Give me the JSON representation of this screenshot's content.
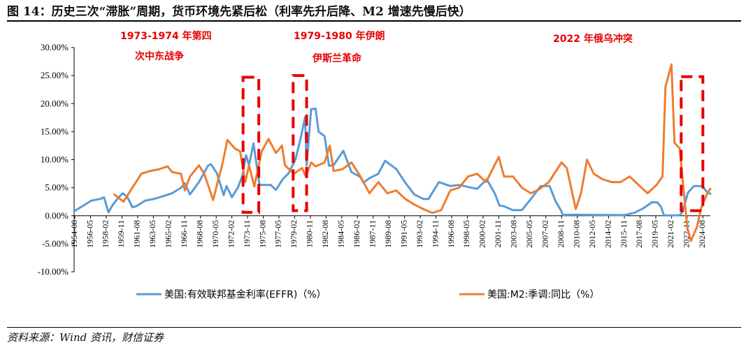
{
  "header": {
    "title": "图 14：历史三次“滞胀”周期，货币环境先紧后松（利率先升后降、M2 增速先慢后快）"
  },
  "footer": {
    "source": "资料来源：Wind 资讯，财信证券"
  },
  "annotations": [
    {
      "line1": "1973-1974 年第四",
      "line2": "次中东战争"
    },
    {
      "line1": "1979-1980 年伊朗",
      "line2": "伊斯兰革命"
    },
    {
      "line1": "2022 年俄乌冲突",
      "line2": ""
    }
  ],
  "colors": {
    "effr": "#5b9bd5",
    "m2": "#ed7d31",
    "highlight": "#e60000"
  },
  "chart_data": {
    "type": "line",
    "y_unit": "%",
    "ylim": [
      -10,
      30
    ],
    "ytick_labels": [
      "30.00%",
      "25.00%",
      "20.00%",
      "15.00%",
      "10.00%",
      "5.00%",
      "0.00%",
      "-5.00%",
      "-10.00%"
    ],
    "ytick_values": [
      30,
      25,
      20,
      15,
      10,
      5,
      0,
      -5,
      -10
    ],
    "xlim": [
      "1954-07",
      "2025-06"
    ],
    "xtick_labels": [
      "1954-08",
      "1956-05",
      "1958-02",
      "1959-11",
      "1961-08",
      "1963-05",
      "1965-02",
      "1966-11",
      "1968-08",
      "1970-05",
      "1972-02",
      "1973-11",
      "1975-08",
      "1977-05",
      "1979-02",
      "1980-11",
      "1982-08",
      "1984-05",
      "1986-02",
      "1987-11",
      "1989-08",
      "1991-05",
      "1993-02",
      "1994-11",
      "1996-08",
      "1998-05",
      "2000-02",
      "2001-11",
      "2003-08",
      "2005-05",
      "2007-02",
      "2008-11",
      "2010-08",
      "2012-05",
      "2014-02",
      "2015-11",
      "2017-08",
      "2019-05",
      "2021-02",
      "2022-11",
      "2024-08"
    ],
    "grid": false,
    "legend_position": "bottom",
    "series": [
      {
        "name": "美国:有效联邦基金利率(EFFR)（%）",
        "points": [
          [
            "1954-07",
            0.8
          ],
          [
            "1955-06",
            1.7
          ],
          [
            "1956-06",
            2.7
          ],
          [
            "1957-06",
            3.0
          ],
          [
            "1957-11",
            3.3
          ],
          [
            "1958-05",
            0.6
          ],
          [
            "1958-10",
            1.8
          ],
          [
            "1959-06",
            3.2
          ],
          [
            "1959-12",
            4.0
          ],
          [
            "1960-06",
            3.4
          ],
          [
            "1961-01",
            1.5
          ],
          [
            "1961-06",
            1.7
          ],
          [
            "1962-06",
            2.7
          ],
          [
            "1963-06",
            3.0
          ],
          [
            "1964-06",
            3.5
          ],
          [
            "1965-06",
            4.0
          ],
          [
            "1966-06",
            5.0
          ],
          [
            "1966-11",
            5.8
          ],
          [
            "1967-06",
            3.8
          ],
          [
            "1968-06",
            6.0
          ],
          [
            "1969-06",
            8.9
          ],
          [
            "1969-10",
            9.2
          ],
          [
            "1970-06",
            7.6
          ],
          [
            "1971-03",
            3.7
          ],
          [
            "1971-07",
            5.3
          ],
          [
            "1972-02",
            3.3
          ],
          [
            "1972-10",
            5.0
          ],
          [
            "1973-04",
            7.1
          ],
          [
            "1973-09",
            10.8
          ],
          [
            "1974-01",
            9.0
          ],
          [
            "1974-07",
            12.9
          ],
          [
            "1975-03",
            5.5
          ],
          [
            "1976-06",
            5.5
          ],
          [
            "1977-01",
            4.6
          ],
          [
            "1977-10",
            6.5
          ],
          [
            "1978-06",
            7.6
          ],
          [
            "1979-03",
            10.0
          ],
          [
            "1979-10",
            13.8
          ],
          [
            "1980-04",
            17.6
          ],
          [
            "1980-06",
            9.0
          ],
          [
            "1980-12",
            19.0
          ],
          [
            "1981-06",
            19.1
          ],
          [
            "1981-10",
            15.0
          ],
          [
            "1982-06",
            14.2
          ],
          [
            "1982-12",
            8.9
          ],
          [
            "1983-06",
            9.0
          ],
          [
            "1984-07",
            11.6
          ],
          [
            "1985-06",
            7.8
          ],
          [
            "1986-06",
            6.9
          ],
          [
            "1986-10",
            5.9
          ],
          [
            "1987-06",
            6.7
          ],
          [
            "1988-06",
            7.5
          ],
          [
            "1989-03",
            9.8
          ],
          [
            "1990-06",
            8.3
          ],
          [
            "1991-06",
            5.9
          ],
          [
            "1992-06",
            3.8
          ],
          [
            "1993-06",
            3.0
          ],
          [
            "1994-01",
            3.0
          ],
          [
            "1995-03",
            6.0
          ],
          [
            "1996-06",
            5.3
          ],
          [
            "1997-06",
            5.5
          ],
          [
            "1998-10",
            5.0
          ],
          [
            "1999-06",
            4.8
          ],
          [
            "2000-07",
            6.5
          ],
          [
            "2001-06",
            3.9
          ],
          [
            "2001-12",
            1.8
          ],
          [
            "2002-06",
            1.7
          ],
          [
            "2003-06",
            1.0
          ],
          [
            "2004-06",
            1.0
          ],
          [
            "2005-06",
            3.0
          ],
          [
            "2006-07",
            5.3
          ],
          [
            "2007-07",
            5.3
          ],
          [
            "2008-03",
            2.6
          ],
          [
            "2008-10",
            1.0
          ],
          [
            "2009-01",
            0.15
          ],
          [
            "2010-06",
            0.18
          ],
          [
            "2012-06",
            0.15
          ],
          [
            "2015-11",
            0.12
          ],
          [
            "2016-12",
            0.5
          ],
          [
            "2017-12",
            1.3
          ],
          [
            "2018-12",
            2.4
          ],
          [
            "2019-07",
            2.4
          ],
          [
            "2019-12",
            1.6
          ],
          [
            "2020-04",
            0.05
          ],
          [
            "2021-12",
            0.08
          ],
          [
            "2022-03",
            0.3
          ],
          [
            "2022-07",
            1.7
          ],
          [
            "2022-12",
            4.1
          ],
          [
            "2023-08",
            5.3
          ],
          [
            "2024-08",
            5.3
          ],
          [
            "2024-10",
            4.8
          ],
          [
            "2025-01",
            4.3
          ],
          [
            "2025-06",
            3.9
          ]
        ]
      },
      {
        "name": "美国:M2:季调:同比（%）",
        "points": [
          [
            "1959-01",
            3.8
          ],
          [
            "1960-01",
            2.5
          ],
          [
            "1961-01",
            5.0
          ],
          [
            "1962-01",
            7.5
          ],
          [
            "1963-01",
            8.0
          ],
          [
            "1964-01",
            8.3
          ],
          [
            "1964-12",
            8.8
          ],
          [
            "1965-06",
            7.8
          ],
          [
            "1966-06",
            7.5
          ],
          [
            "1966-11",
            4.5
          ],
          [
            "1967-06",
            7.0
          ],
          [
            "1968-06",
            9.0
          ],
          [
            "1969-01",
            7.5
          ],
          [
            "1970-01",
            2.8
          ],
          [
            "1970-06",
            5.5
          ],
          [
            "1971-01",
            9.0
          ],
          [
            "1971-08",
            13.5
          ],
          [
            "1972-06",
            12.0
          ],
          [
            "1973-01",
            11.5
          ],
          [
            "1973-08",
            6.0
          ],
          [
            "1974-01",
            9.0
          ],
          [
            "1974-08",
            5.2
          ],
          [
            "1975-06",
            11.5
          ],
          [
            "1976-03",
            13.7
          ],
          [
            "1977-01",
            11.2
          ],
          [
            "1977-09",
            12.5
          ],
          [
            "1978-01",
            9.0
          ],
          [
            "1979-01",
            7.5
          ],
          [
            "1979-12",
            8.5
          ],
          [
            "1980-05",
            7.0
          ],
          [
            "1980-12",
            9.5
          ],
          [
            "1981-06",
            8.8
          ],
          [
            "1982-06",
            9.5
          ],
          [
            "1983-01",
            12.5
          ],
          [
            "1983-06",
            8.0
          ],
          [
            "1984-06",
            8.3
          ],
          [
            "1985-06",
            9.5
          ],
          [
            "1986-06",
            7.0
          ],
          [
            "1987-06",
            4.0
          ],
          [
            "1988-06",
            6.0
          ],
          [
            "1989-06",
            4.0
          ],
          [
            "1990-06",
            4.5
          ],
          [
            "1991-06",
            3.0
          ],
          [
            "1992-06",
            2.0
          ],
          [
            "1993-06",
            1.2
          ],
          [
            "1994-06",
            0.5
          ],
          [
            "1995-06",
            1.0
          ],
          [
            "1996-06",
            4.5
          ],
          [
            "1997-06",
            5.0
          ],
          [
            "1998-06",
            7.0
          ],
          [
            "1999-06",
            7.5
          ],
          [
            "2000-06",
            6.0
          ],
          [
            "2001-11",
            10.5
          ],
          [
            "2002-06",
            7.0
          ],
          [
            "2003-06",
            7.0
          ],
          [
            "2004-06",
            5.0
          ],
          [
            "2005-06",
            4.0
          ],
          [
            "2006-06",
            4.8
          ],
          [
            "2007-06",
            6.0
          ],
          [
            "2008-11",
            9.5
          ],
          [
            "2009-06",
            8.5
          ],
          [
            "2010-06",
            1.2
          ],
          [
            "2011-01",
            4.0
          ],
          [
            "2011-09",
            10.0
          ],
          [
            "2012-06",
            7.5
          ],
          [
            "2013-06",
            6.5
          ],
          [
            "2014-06",
            6.0
          ],
          [
            "2015-06",
            6.0
          ],
          [
            "2016-06",
            7.0
          ],
          [
            "2017-06",
            5.5
          ],
          [
            "2018-06",
            4.0
          ],
          [
            "2019-06",
            5.5
          ],
          [
            "2020-02",
            7.0
          ],
          [
            "2020-06",
            23.0
          ],
          [
            "2021-02",
            27.0
          ],
          [
            "2021-06",
            13.0
          ],
          [
            "2022-01",
            12.0
          ],
          [
            "2022-06",
            5.0
          ],
          [
            "2022-11",
            -2.0
          ],
          [
            "2023-04",
            -4.5
          ],
          [
            "2023-12",
            -2.0
          ],
          [
            "2024-06",
            1.5
          ],
          [
            "2025-02",
            4.0
          ],
          [
            "2025-06",
            4.8
          ]
        ]
      }
    ],
    "highlight_periods": [
      {
        "from": "1973-05",
        "to": "1975-02",
        "y_top": 24.7,
        "y_bottom": 0.6
      },
      {
        "from": "1978-12",
        "to": "1980-06",
        "y_top": 25.0,
        "y_bottom": 0.9
      },
      {
        "from": "2022-03",
        "to": "2024-08",
        "y_top": 24.8,
        "y_bottom": 0.9
      }
    ]
  }
}
